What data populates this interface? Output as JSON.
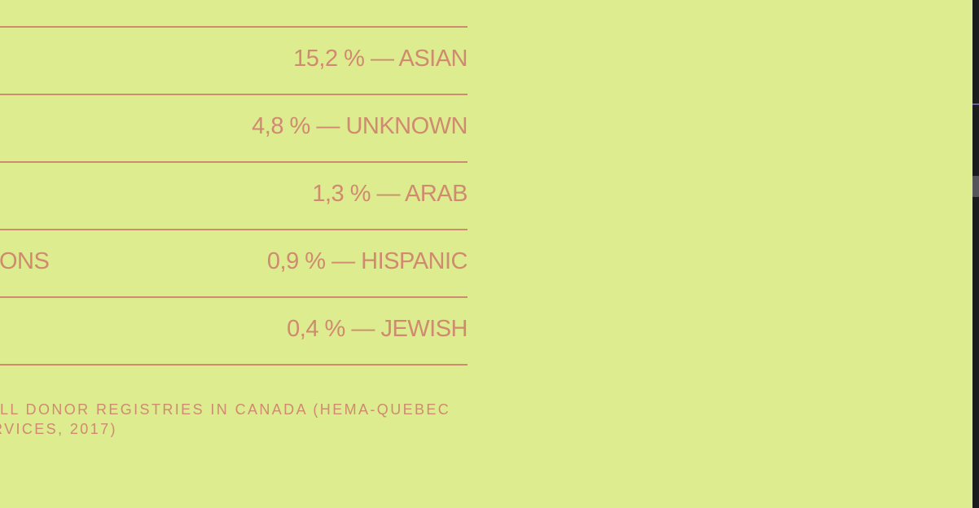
{
  "rows": [
    {
      "left": "",
      "right": "15,2 % — ASIAN"
    },
    {
      "left": "",
      "right": "4,8 % — UNKNOWN"
    },
    {
      "left": "",
      "right": "1,3 % — ARAB"
    },
    {
      "left": "ONS",
      "right": "0,9 % — HISPANIC"
    },
    {
      "left": "",
      "right": "0,4 % — JEWISH"
    }
  ],
  "footnote": {
    "line1": "LL DONOR REGISTRIES IN CANADA (HEMA-QUEBEC",
    "line2": "RVICES, 2017)"
  },
  "colors": {
    "background": "#ddec8e",
    "text": "#cf8a70",
    "scrollbar_track": "#1c1c1f",
    "scrollbar_thumb": "#55555b"
  }
}
